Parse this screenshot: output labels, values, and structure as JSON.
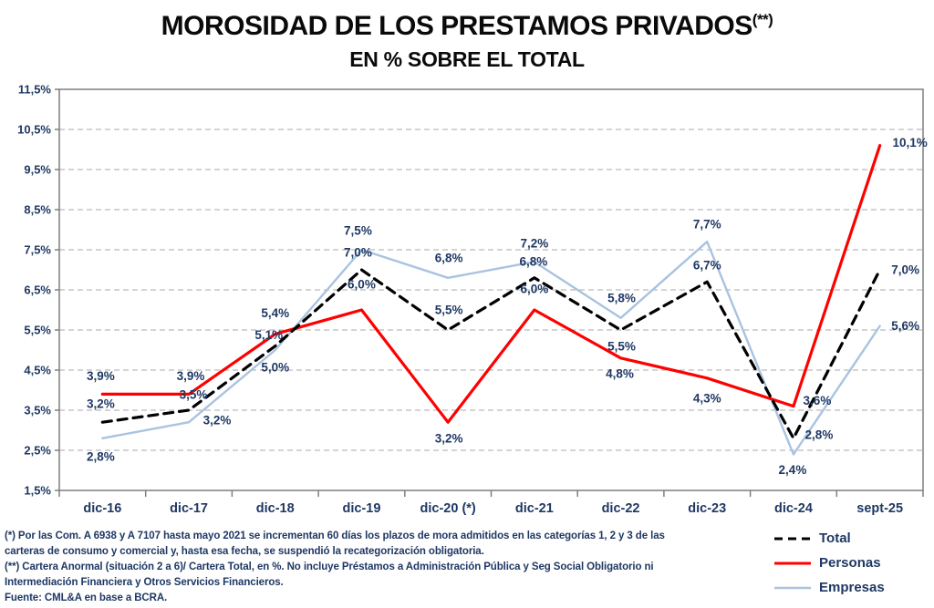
{
  "title": {
    "main": "MOROSIDAD DE LOS PRESTAMOS PRIVADOS",
    "sup": "(**)",
    "subtitle": "EN % SOBRE EL TOTAL"
  },
  "colors": {
    "label_navy": "#1F3864",
    "grid": "#A8A8A8",
    "plot_border": "#7F7F7F",
    "total": "#000000",
    "personas": "#FF0000",
    "empresas": "#A9C3E0"
  },
  "chart_data": {
    "type": "line",
    "title": "MOROSIDAD DE LOS PRESTAMOS PRIVADOS (**)",
    "subtitle": "EN % SOBRE EL TOTAL",
    "categories": [
      "dic-16",
      "dic-17",
      "dic-18",
      "dic-19",
      "dic-20 (*)",
      "dic-21",
      "dic-22",
      "dic-23",
      "dic-24",
      "sept-25"
    ],
    "y_tick_labels": [
      "11,5%",
      "10,5%",
      "9,5%",
      "8,5%",
      "7,5%",
      "6,5%",
      "5,5%",
      "4,5%",
      "3,5%",
      "2,5%",
      "1,5%"
    ],
    "ylim": [
      1.5,
      11.5
    ],
    "ytick_step": 1.0,
    "grid": "horizontal-dashed",
    "legend_position": "bottom-right",
    "series": [
      {
        "name": "Total",
        "color": "#000000",
        "style": "dashed",
        "values": [
          3.2,
          3.5,
          5.1,
          7.0,
          5.5,
          6.8,
          5.5,
          6.7,
          2.8,
          7.0
        ],
        "labels": [
          "3,2%",
          "3,5%",
          "5,1%",
          "7,0%",
          "5,5%",
          "6,8%",
          "5,5%",
          "6,7%",
          "2,8%",
          "7,0%"
        ],
        "label_offsets": [
          [
            -2,
            -20
          ],
          [
            5,
            -17
          ],
          [
            -7,
            -12
          ],
          [
            -4,
            -19
          ],
          [
            1,
            -22
          ],
          [
            -1,
            -18
          ],
          [
            1,
            18
          ],
          [
            0,
            -18
          ],
          [
            28,
            -4
          ],
          [
            28,
            0
          ]
        ]
      },
      {
        "name": "Personas",
        "color": "#FF0000",
        "style": "solid",
        "values": [
          3.9,
          3.9,
          5.4,
          6.0,
          3.2,
          6.0,
          4.8,
          4.3,
          3.6,
          10.1
        ],
        "labels": [
          "3,9%",
          "3,9%",
          "5,4%",
          "6,0%",
          "3,2%",
          "6,0%",
          "4,8%",
          "4,3%",
          "3,6%",
          "10,1%"
        ],
        "label_offsets": [
          [
            -2,
            -20
          ],
          [
            2,
            -20
          ],
          [
            0,
            -23
          ],
          [
            0,
            -28
          ],
          [
            1,
            18
          ],
          [
            0,
            -23
          ],
          [
            -1,
            17
          ],
          [
            0,
            22
          ],
          [
            26,
            -6
          ],
          [
            33,
            -3
          ]
        ]
      },
      {
        "name": "Empresas",
        "color": "#A9C3E0",
        "style": "solid",
        "values": [
          2.8,
          3.2,
          5.0,
          7.5,
          6.8,
          7.2,
          5.8,
          7.7,
          2.4,
          5.6
        ],
        "labels": [
          "2,8%",
          "3,2%",
          "5,0%",
          "7,5%",
          "6,8%",
          "7,2%",
          "5,8%",
          "7,7%",
          "2,4%",
          "5,6%"
        ],
        "label_offsets": [
          [
            -2,
            20
          ],
          [
            31,
            -2
          ],
          [
            0,
            19
          ],
          [
            -4,
            -21
          ],
          [
            1,
            -22
          ],
          [
            0,
            -20
          ],
          [
            1,
            -22
          ],
          [
            0,
            -19
          ],
          [
            -1,
            17
          ],
          [
            28,
            0
          ]
        ]
      }
    ]
  },
  "legend": {
    "items": [
      {
        "label": "Total",
        "color": "#000000",
        "style": "dashed"
      },
      {
        "label": "Personas",
        "color": "#FF0000",
        "style": "solid"
      },
      {
        "label": "Empresas",
        "color": "#A9C3E0",
        "style": "solid"
      }
    ]
  },
  "footnotes": [
    "(*) Por las Com. A 6938 y A 7107 hasta mayo 2021 se incrementan 60 días los plazos de mora admitidos en las categorías 1, 2 y 3 de las",
    "carteras de consumo y comercial y, hasta esa fecha, se suspendió la recategorización obligatoria.",
    "(**) Cartera Anormal (situación 2 a 6)/ Cartera Total, en %. No incluye Préstamos a Administración  Pública y Seg Social Obligatorio ni",
    "Intermediación  Financiera y Otros Servicios Financieros.",
    "Fuente: CML&A en base a BCRA."
  ]
}
